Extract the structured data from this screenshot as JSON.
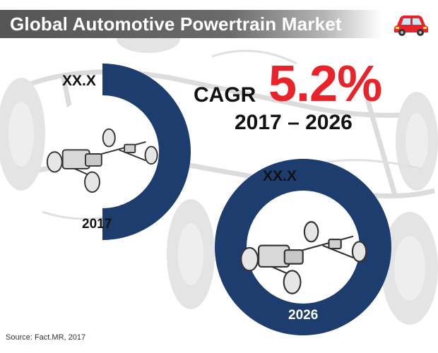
{
  "header": {
    "title": "Global Automotive Powertrain Market",
    "icon": "car-icon"
  },
  "market": {
    "base": {
      "value_label": "XX.X",
      "year": "2017"
    },
    "forecast": {
      "value_label": "XX.X",
      "year": "2026"
    }
  },
  "cagr": {
    "label": "CAGR",
    "value": "5.2%",
    "period": "2017 – 2026"
  },
  "source": "Source: Fact.MR, 2017",
  "colors": {
    "donut": "#1c3d6e",
    "accent": "#e8232a",
    "title_bar": "#5c5c5c",
    "car": "#e8232a"
  }
}
